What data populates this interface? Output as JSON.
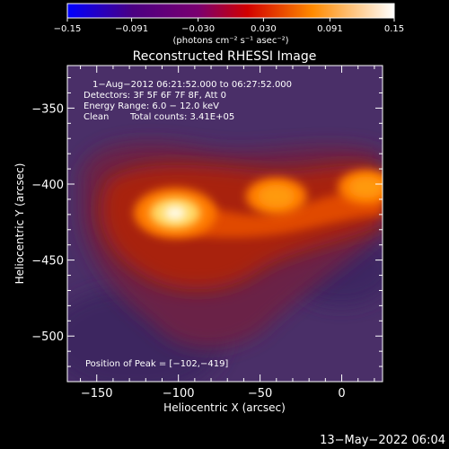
{
  "chart_data": {
    "type": "heatmap",
    "title": "Reconstructed RHESSI Image",
    "xlabel": "Heliocentric X (arcsec)",
    "ylabel": "Heliocentric Y (arcsec)",
    "xlim": [
      -168,
      25
    ],
    "ylim": [
      -530,
      -322
    ],
    "xticks": [
      -150,
      -100,
      -50,
      0
    ],
    "yticks": [
      -350,
      -400,
      -450,
      -500
    ],
    "xtick_labels": [
      "−150",
      "−100",
      "−50",
      "0"
    ],
    "ytick_labels": [
      "−350",
      "−400",
      "−450",
      "−500"
    ],
    "colorbar": {
      "range": [
        -0.15,
        0.15
      ],
      "ticks": [
        -0.15,
        -0.091,
        -0.03,
        0.03,
        0.091,
        0.15
      ],
      "tick_labels": [
        "−0.15",
        "−0.091",
        "−0.030",
        "0.030",
        "0.091",
        "0.15"
      ],
      "units": "(photons cm⁻² s⁻¹ asec⁻²)",
      "colors": [
        "#0000ff",
        "#4b0082",
        "#8b008b",
        "#ff0000",
        "#ffa500",
        "#ffffff"
      ]
    },
    "annotations": [
      "1−Aug−2012 06:21:52.000 to 06:27:52.000",
      "Detectors: 3F 5F 6F 7F 8F, Att 0",
      "Energy Range: 6.0 − 12.0 keV",
      "Clean",
      "Total counts: 3.41E+05"
    ],
    "peak_label": "Position of Peak = [−102,−419]",
    "sources": [
      {
        "x": -102,
        "y": -419,
        "intensity": 0.15
      },
      {
        "x": -40,
        "y": -408,
        "intensity": 0.1
      },
      {
        "x": 15,
        "y": -402,
        "intensity": 0.09
      }
    ]
  },
  "timestamp": "13−May−2022 06:04"
}
